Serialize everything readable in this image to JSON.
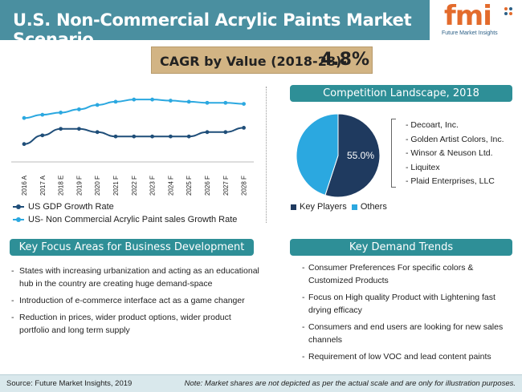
{
  "header": {
    "title": "U.S. Non-Commercial Acrylic Paints Market Scenario"
  },
  "logo": {
    "text": "fmi",
    "subtitle": "Future Market Insights"
  },
  "cagr": {
    "label": "CAGR by Value (2018-28)-",
    "value": "4.8%"
  },
  "chart_data": [
    {
      "type": "line",
      "categories": [
        "2016 A",
        "2017 A",
        "2018 E",
        "2019 F",
        "2020 F",
        "2021 F",
        "2022 F",
        "2023 F",
        "2024 F",
        "2025 F",
        "2026 F",
        "2027 F",
        "2028 F"
      ],
      "series": [
        {
          "name": "US  GDP Growth Rate",
          "color": "#1f4e79",
          "values": [
            1.5,
            2.3,
            2.9,
            2.9,
            2.6,
            2.2,
            2.2,
            2.2,
            2.2,
            2.2,
            2.6,
            2.6,
            3.0
          ]
        },
        {
          "name": "US- Non Commercial Acrylic Paint sales Growth Rate",
          "color": "#2ba8e0",
          "values": [
            3.9,
            4.2,
            4.4,
            4.7,
            5.1,
            5.4,
            5.6,
            5.6,
            5.5,
            5.4,
            5.3,
            5.3,
            5.2
          ]
        }
      ],
      "ylim": [
        0,
        6.5
      ],
      "grid": false,
      "legend": "bottom-left"
    },
    {
      "type": "pie",
      "labels": [
        "Key Players",
        "Others"
      ],
      "values": [
        55.0,
        45.0
      ],
      "colors": [
        "#1f3a5f",
        "#2ba8e0"
      ],
      "data_label": "55.0%",
      "legend": "bottom"
    }
  ],
  "competition": {
    "title": "Competition Landscape, 2018",
    "items": [
      "- Decoart, Inc.",
      "- Golden Artist Colors, Inc.",
      "- Winsor & Neuson Ltd.",
      "- Liquitex",
      "- Plaid Enterprises, LLC"
    ]
  },
  "focus": {
    "title": "Key Focus Areas for Business Development",
    "items": [
      "States  with increasing urbanization and acting as an educational hub in the country are creating huge demand-space",
      "Introduction of e-commerce interface act as a game changer",
      "Reduction in prices, wider product options, wider product portfolio and long term supply"
    ]
  },
  "demand": {
    "title": "Key Demand Trends",
    "items": [
      "Consumer Preferences For specific colors & Customized Products",
      "Focus on High quality Product with Lightening fast drying efficacy",
      "Consumers and end users  are looking for new sales channels",
      "Requirement of low VOC and lead content paints"
    ]
  },
  "footer": {
    "source": "Source: Future Market Insights, 2019",
    "note": "Note: Market shares are not depicted as per the actual scale and are only for illustration purposes."
  }
}
